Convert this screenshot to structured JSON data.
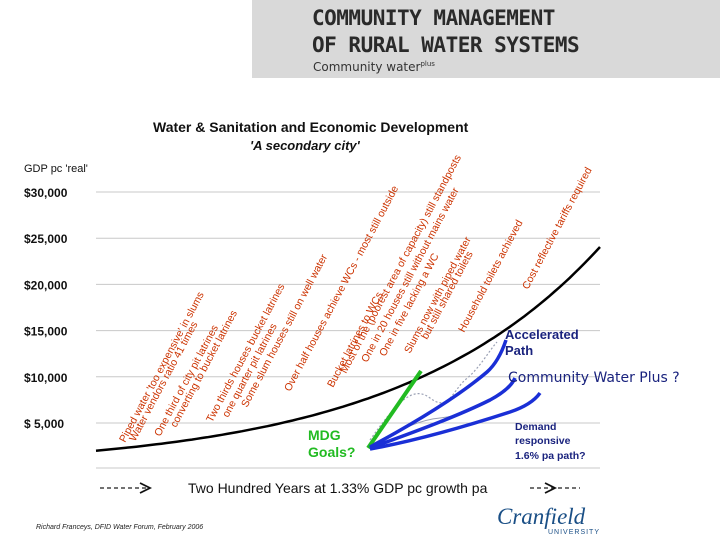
{
  "header": {
    "title_line1": "COMMUNITY MANAGEMENT",
    "title_line2": "OF RURAL WATER SYSTEMS",
    "subtitle_main": "Community water",
    "subtitle_sup": "plus"
  },
  "overlay_label": "Community Water Plus ?",
  "credit": "Richard Franceys, DFID Water Forum, February 2006",
  "logo": {
    "main": "Cranfield",
    "sub": "UNIVERSITY"
  },
  "colors": {
    "curve": "#000000",
    "green": "#22bb22",
    "blue": "#1a2fd6",
    "annotation": "#cc3300",
    "accent": "#1a2fd6"
  },
  "chart_data": {
    "type": "line",
    "title": "Water & Sanitation and Economic Development",
    "subtitle": "'A secondary city'",
    "ylabel": "GDP pc 'real'",
    "xlabel": "Two Hundred Years at 1.33% GDP pc growth pa",
    "y_ticks": [
      "$30,000",
      "$25,000",
      "$20,000",
      "$15,000",
      "$10,000",
      "$ 5,000"
    ],
    "y_tick_values": [
      30000,
      25000,
      20000,
      15000,
      10000,
      5000
    ],
    "ylim": [
      0,
      32000
    ],
    "x_years": [
      0,
      200
    ],
    "growth_rate_pct": 1.33,
    "start_gdp": 2000,
    "grid": true,
    "annotations": [
      "Piped water 'too expensive' in slums",
      "Water vendors ratio 41 times",
      "One third of city pit latrines",
      "converting to bucket latrines",
      "Two thirds houses bucket latrines",
      "one quarter pit latrines",
      "Some slum houses still on well water",
      "Over half houses achieve WCs - most still outside",
      "Bucket latrines to WCs",
      "Most of the (poorest area of capacity) still standposts",
      "One in 20 houses still without mains water",
      "One in five lacking a WC",
      "Slums now with piped water",
      "but still shared toilets",
      "Household toilets achieved",
      "Cost reflective tariffs required"
    ],
    "series_labels": {
      "mdg": "MDG Goals?",
      "accelerated": "Accelerated Path",
      "demand": [
        "Demand",
        "responsive",
        "1.6% pa path?"
      ]
    }
  }
}
